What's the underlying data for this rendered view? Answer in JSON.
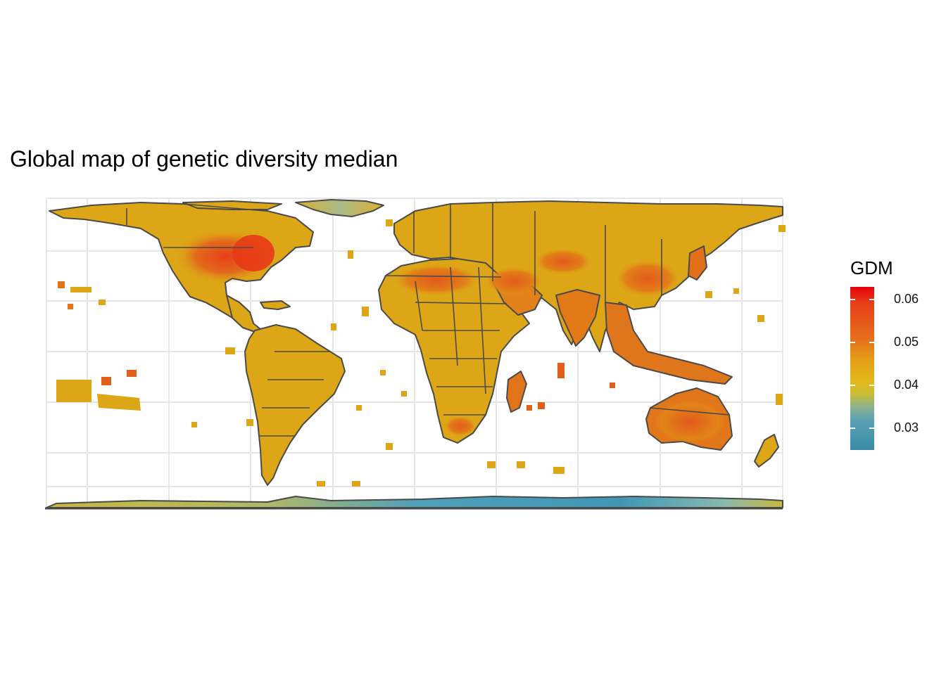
{
  "title": "Global map of genetic diversity median",
  "legend": {
    "title": "GDM",
    "ticks": [
      "0.06",
      "0.05",
      "0.04",
      "0.03"
    ],
    "tick_values": [
      0.06,
      0.05,
      0.04,
      0.03
    ],
    "range": [
      0.025,
      0.063
    ]
  },
  "colors": {
    "low": "#3b8ca7",
    "mid_low": "#8fb38a",
    "mid": "#e3b81c",
    "mid_high": "#e56a1c",
    "high": "#e8000d",
    "outline": "#4a4a4a",
    "grid": "#e6e6e6"
  },
  "map": {
    "projection": "equirectangular",
    "grid": true,
    "country_outlines": true
  }
}
